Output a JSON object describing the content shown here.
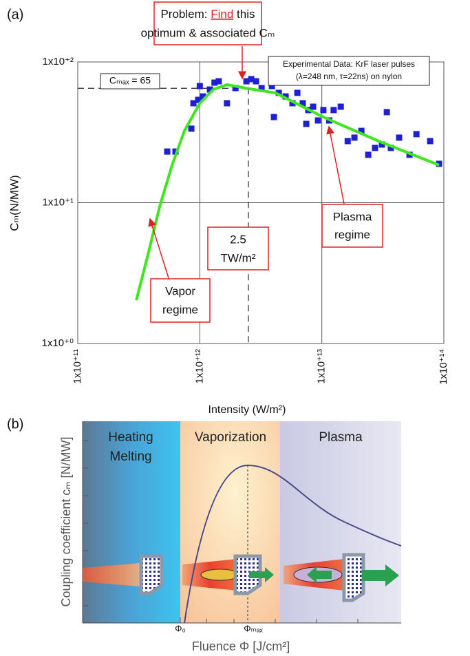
{
  "chart_data": [
    {
      "type": "scatter",
      "panel_label": "(a)",
      "xlabel": "Intensity (W/m²)",
      "ylabel": "Cₘ(N/MW)",
      "xscale": "log",
      "yscale": "log",
      "grid": true,
      "xlim": [
        100000000000,
        100000000000000
      ],
      "ylim": [
        1,
        100
      ],
      "xticks": [
        {
          "value": 100000000000,
          "label": "1x10⁺¹¹"
        },
        {
          "value": 1000000000000,
          "label": "1x10⁺¹²"
        },
        {
          "value": 10000000000000,
          "label": "1x10⁺¹³"
        },
        {
          "value": 100000000000000,
          "label": "1x10⁺¹⁴"
        }
      ],
      "yticks": [
        {
          "value": 1,
          "label": "1x10⁺⁰"
        },
        {
          "value": 10,
          "label": "1x10⁺¹"
        },
        {
          "value": 100,
          "label": "1x10⁺²"
        }
      ],
      "series": [
        {
          "name": "Experimental Data: KrF laser pulses",
          "note": "(λ=248 nm, τ=22ns) on nylon",
          "type": "scatter",
          "color": "#1f1fd6",
          "x": [
            541000000000,
            632000000000,
            853000000000,
            887000000000,
            970000000000,
            1000000000000,
            1060000000000,
            1210000000000,
            1320000000000,
            1430000000000,
            1670000000000,
            1960000000000,
            2410000000000,
            2640000000000,
            2890000000000,
            3210000000000,
            3900000000000,
            4050000000000,
            4440000000000,
            5050000000000,
            5750000000000,
            6300000000000,
            6980000000000,
            7460000000000,
            7750000000000,
            8490000000000,
            9300000000000,
            10300000000000,
            11500000000000,
            12500000000000,
            14300000000000,
            16300000000000,
            18500000000000,
            21100000000000,
            24000000000000,
            27300000000000,
            31100000000000,
            34100000000000,
            36800000000000,
            43000000000000,
            52300000000000,
            59600000000000,
            77200000000000,
            91400000000000
          ],
          "values": [
            23.1,
            23.1,
            33.6,
            50.9,
            53.8,
            67.4,
            56.9,
            63.7,
            71.3,
            72.9,
            50.9,
            65.2,
            72.9,
            75.5,
            72.9,
            65.2,
            67.4,
            40.6,
            60.3,
            56.9,
            50.9,
            60.3,
            50.9,
            36.3,
            45.5,
            48.1,
            38.4,
            45.5,
            38.4,
            45.5,
            48.1,
            27.4,
            29.0,
            32.4,
            21.9,
            24.5,
            25.9,
            44.0,
            24.5,
            29.0,
            21.9,
            30.7,
            27.4,
            18.9
          ]
        },
        {
          "type": "line",
          "color": "#3ee61e",
          "x": [
            302000000000,
            376000000000,
            469000000000,
            593000000000,
            748000000000,
            1000000000000,
            1290000000000,
            1670000000000,
            2410000000000,
            4160000000000,
            10300000000000,
            29200000000000,
            91400000000000
          ],
          "values": [
            2.03,
            4.27,
            9.4,
            18.5,
            32.4,
            50.9,
            63.7,
            69.0,
            65,
            60.3,
            40.6,
            27.4,
            18.5
          ]
        }
      ],
      "hline": {
        "value": 65,
        "label": "Cₘₐₓ = 65"
      },
      "vline": {
        "value": 2500000000000,
        "label": [
          "2.5",
          "TW/m²"
        ]
      },
      "problem": [
        "Problem:",
        "Find",
        "this",
        "optimum & associated Cₘ"
      ],
      "plasma_label": [
        "Plasma",
        "regime"
      ],
      "vapor_label": [
        "Vapor",
        "regime"
      ]
    },
    {
      "type": "schematic",
      "panel_label": "(b)",
      "ylabel": "Coupling coefficient cₘ [N/MW]",
      "xlabel": "Fluence Φ [J/cm²]",
      "regions": [
        [
          "Heating",
          "Melting"
        ],
        [
          "Vaporization"
        ],
        [
          "Plasma"
        ]
      ],
      "x_markers": [
        "Φ₀",
        "Φₘₐₓ"
      ]
    }
  ]
}
